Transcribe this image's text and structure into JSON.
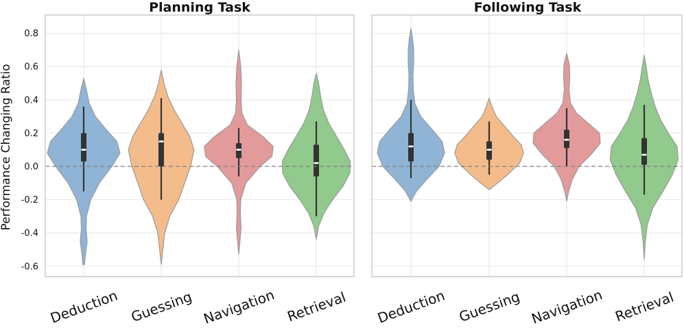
{
  "chart_data": [
    {
      "type": "violin",
      "title": "Planning Task",
      "ylabel": "Performance Changing Ratio",
      "xlabel": "",
      "ylim": [
        -0.65,
        0.83
      ],
      "yticks": [
        "0.8",
        "0.6",
        "0.4",
        "0.2",
        "0.0",
        "-0.2",
        "-0.4",
        "-0.6"
      ],
      "ytick_values": [
        0.8,
        0.6,
        0.4,
        0.2,
        0.0,
        -0.2,
        -0.4,
        -0.6
      ],
      "reference_line": 0.0,
      "categories": [
        "Deduction",
        "Guessing",
        "Navigation",
        "Retrieval"
      ],
      "series": [
        {
          "name": "Deduction",
          "color": "#8fb4d6",
          "min": -0.59,
          "max": 0.53,
          "whisker_low": -0.15,
          "q1": 0.03,
          "median": 0.1,
          "q3": 0.2,
          "whisker_high": 0.36,
          "density": [
            [
              -0.59,
              0.02
            ],
            [
              -0.52,
              0.05
            ],
            [
              -0.45,
              0.09
            ],
            [
              -0.38,
              0.06
            ],
            [
              -0.3,
              0.07
            ],
            [
              -0.2,
              0.18
            ],
            [
              -0.1,
              0.4
            ],
            [
              0.0,
              0.72
            ],
            [
              0.08,
              0.93
            ],
            [
              0.15,
              0.85
            ],
            [
              0.22,
              0.58
            ],
            [
              0.3,
              0.3
            ],
            [
              0.38,
              0.14
            ],
            [
              0.46,
              0.07
            ],
            [
              0.53,
              0.0
            ]
          ]
        },
        {
          "name": "Guessing",
          "color": "#f3bc8a",
          "min": -0.59,
          "max": 0.58,
          "whisker_low": -0.2,
          "q1": 0.0,
          "median": 0.15,
          "q3": 0.2,
          "whisker_high": 0.41,
          "density": [
            [
              -0.59,
              0.0
            ],
            [
              -0.5,
              0.04
            ],
            [
              -0.4,
              0.09
            ],
            [
              -0.3,
              0.22
            ],
            [
              -0.2,
              0.45
            ],
            [
              -0.1,
              0.6
            ],
            [
              0.0,
              0.75
            ],
            [
              0.1,
              0.84
            ],
            [
              0.18,
              0.73
            ],
            [
              0.26,
              0.53
            ],
            [
              0.34,
              0.33
            ],
            [
              0.42,
              0.17
            ],
            [
              0.5,
              0.07
            ],
            [
              0.58,
              0.0
            ]
          ]
        },
        {
          "name": "Navigation",
          "color": "#e39a9b",
          "min": -0.53,
          "max": 0.7,
          "whisker_low": -0.06,
          "q1": 0.05,
          "median": 0.1,
          "q3": 0.14,
          "whisker_high": 0.23,
          "density": [
            [
              -0.53,
              0.0
            ],
            [
              -0.45,
              0.03
            ],
            [
              -0.37,
              0.06
            ],
            [
              -0.28,
              0.04
            ],
            [
              -0.2,
              0.05
            ],
            [
              -0.1,
              0.18
            ],
            [
              0.0,
              0.55
            ],
            [
              0.06,
              0.85
            ],
            [
              0.12,
              0.88
            ],
            [
              0.18,
              0.62
            ],
            [
              0.25,
              0.22
            ],
            [
              0.32,
              0.08
            ],
            [
              0.4,
              0.06
            ],
            [
              0.5,
              0.07
            ],
            [
              0.6,
              0.05
            ],
            [
              0.7,
              0.0
            ]
          ]
        },
        {
          "name": "Retrieval",
          "color": "#92c98c",
          "min": -0.44,
          "max": 0.56,
          "whisker_low": -0.3,
          "q1": -0.06,
          "median": 0.02,
          "q3": 0.13,
          "whisker_high": 0.27,
          "density": [
            [
              -0.44,
              0.0
            ],
            [
              -0.36,
              0.06
            ],
            [
              -0.28,
              0.2
            ],
            [
              -0.2,
              0.42
            ],
            [
              -0.12,
              0.68
            ],
            [
              -0.04,
              0.86
            ],
            [
              0.03,
              0.87
            ],
            [
              0.1,
              0.72
            ],
            [
              0.18,
              0.52
            ],
            [
              0.26,
              0.32
            ],
            [
              0.34,
              0.18
            ],
            [
              0.42,
              0.11
            ],
            [
              0.5,
              0.06
            ],
            [
              0.56,
              0.0
            ]
          ]
        }
      ]
    },
    {
      "type": "violin",
      "title": "Following Task",
      "ylabel": "",
      "xlabel": "",
      "ylim": [
        -0.65,
        0.83
      ],
      "reference_line": 0.0,
      "categories": [
        "Deduction",
        "Guessing",
        "Navigation",
        "Retrieval"
      ],
      "series": [
        {
          "name": "Deduction",
          "color": "#8fb4d6",
          "min": -0.21,
          "max": 0.83,
          "whisker_low": -0.07,
          "q1": 0.03,
          "median": 0.12,
          "q3": 0.2,
          "whisker_high": 0.4,
          "density": [
            [
              -0.21,
              0.0
            ],
            [
              -0.15,
              0.14
            ],
            [
              -0.08,
              0.4
            ],
            [
              0.0,
              0.72
            ],
            [
              0.08,
              0.86
            ],
            [
              0.15,
              0.8
            ],
            [
              0.22,
              0.55
            ],
            [
              0.3,
              0.25
            ],
            [
              0.38,
              0.1
            ],
            [
              0.46,
              0.06
            ],
            [
              0.55,
              0.05
            ],
            [
              0.62,
              0.07
            ],
            [
              0.7,
              0.07
            ],
            [
              0.77,
              0.04
            ],
            [
              0.83,
              0.0
            ]
          ]
        },
        {
          "name": "Guessing",
          "color": "#f3bc8a",
          "min": -0.14,
          "max": 0.41,
          "whisker_low": -0.05,
          "q1": 0.04,
          "median": 0.1,
          "q3": 0.15,
          "whisker_high": 0.27,
          "density": [
            [
              -0.14,
              0.0
            ],
            [
              -0.1,
              0.22
            ],
            [
              -0.04,
              0.52
            ],
            [
              0.02,
              0.78
            ],
            [
              0.08,
              0.88
            ],
            [
              0.13,
              0.82
            ],
            [
              0.18,
              0.62
            ],
            [
              0.24,
              0.4
            ],
            [
              0.3,
              0.18
            ],
            [
              0.36,
              0.07
            ],
            [
              0.41,
              0.0
            ]
          ]
        },
        {
          "name": "Navigation",
          "color": "#e39a9b",
          "min": -0.21,
          "max": 0.68,
          "whisker_low": 0.0,
          "q1": 0.11,
          "median": 0.16,
          "q3": 0.22,
          "whisker_high": 0.35,
          "density": [
            [
              -0.21,
              0.0
            ],
            [
              -0.15,
              0.05
            ],
            [
              -0.08,
              0.14
            ],
            [
              0.0,
              0.32
            ],
            [
              0.07,
              0.62
            ],
            [
              0.14,
              0.86
            ],
            [
              0.2,
              0.84
            ],
            [
              0.26,
              0.55
            ],
            [
              0.32,
              0.25
            ],
            [
              0.38,
              0.1
            ],
            [
              0.46,
              0.06
            ],
            [
              0.54,
              0.08
            ],
            [
              0.61,
              0.07
            ],
            [
              0.68,
              0.0
            ]
          ]
        },
        {
          "name": "Retrieval",
          "color": "#92c98c",
          "min": -0.56,
          "max": 0.67,
          "whisker_low": -0.17,
          "q1": 0.01,
          "median": 0.07,
          "q3": 0.17,
          "whisker_high": 0.37,
          "density": [
            [
              -0.56,
              0.0
            ],
            [
              -0.45,
              0.03
            ],
            [
              -0.35,
              0.08
            ],
            [
              -0.25,
              0.22
            ],
            [
              -0.15,
              0.48
            ],
            [
              -0.05,
              0.72
            ],
            [
              0.04,
              0.87
            ],
            [
              0.12,
              0.84
            ],
            [
              0.2,
              0.62
            ],
            [
              0.28,
              0.42
            ],
            [
              0.36,
              0.28
            ],
            [
              0.44,
              0.18
            ],
            [
              0.52,
              0.1
            ],
            [
              0.6,
              0.05
            ],
            [
              0.67,
              0.0
            ]
          ]
        }
      ]
    }
  ]
}
